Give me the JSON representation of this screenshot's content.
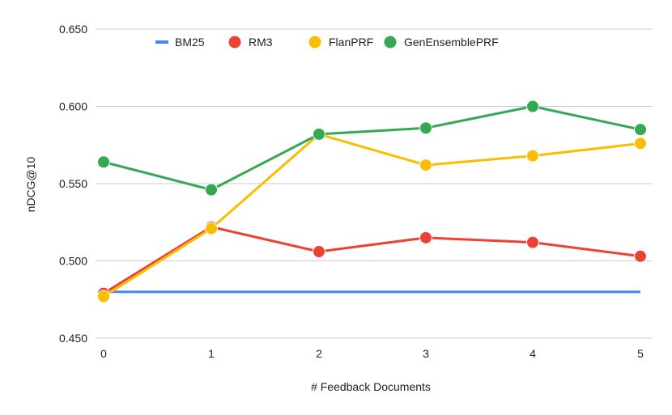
{
  "chart_data": {
    "type": "line",
    "x": [
      0,
      1,
      2,
      3,
      4,
      5
    ],
    "xlabel": "# Feedback Documents",
    "ylabel": "nDCG@10",
    "ylim": [
      0.45,
      0.65
    ],
    "yticks": [
      "0.450",
      "0.500",
      "0.550",
      "0.600",
      "0.650"
    ],
    "grid": true,
    "legend_position": "top",
    "series": [
      {
        "name": "BM25",
        "color": "#4285f4",
        "marker": "none",
        "values": [
          0.48,
          0.48,
          0.48,
          0.48,
          0.48,
          0.48
        ]
      },
      {
        "name": "RM3",
        "color": "#ea4335",
        "marker": "circle",
        "values": [
          0.479,
          0.522,
          0.506,
          0.515,
          0.512,
          0.503
        ]
      },
      {
        "name": "FlanPRF",
        "color": "#fbbc04",
        "marker": "circle",
        "values": [
          0.477,
          0.521,
          0.582,
          0.562,
          0.568,
          0.576
        ]
      },
      {
        "name": "GenEnsemblePRF",
        "color": "#34a853",
        "marker": "circle",
        "values": [
          0.564,
          0.546,
          0.582,
          0.586,
          0.6,
          0.585
        ]
      }
    ]
  }
}
